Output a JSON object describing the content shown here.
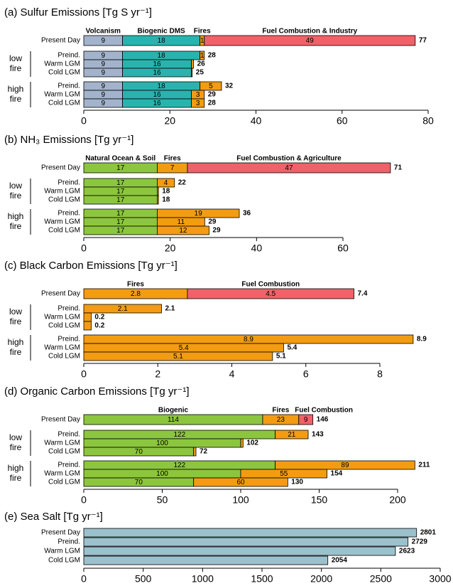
{
  "chart_data": [
    {
      "type": "bar",
      "title": "(a) Sulfur Emissions [Tg S yr⁻¹]",
      "categories": [
        "Present Day",
        "Preind.",
        "Warm LGM",
        "Cold LGM",
        "Preind.",
        "Warm LGM",
        "Cold LGM"
      ],
      "category_groups": [
        null,
        "low fire",
        "low fire",
        "low fire",
        "high fire",
        "high fire",
        "high fire"
      ],
      "series": [
        {
          "name": "Volcanism",
          "color": "#a3b3cb",
          "values": [
            9,
            9,
            9,
            9,
            9,
            9,
            9
          ]
        },
        {
          "name": "Biogenic DMS",
          "color": "#2ab3ae",
          "values": [
            18,
            18,
            16,
            16,
            18,
            16,
            16
          ]
        },
        {
          "name": "Fires",
          "color": "#f39c12",
          "values": [
            1,
            1,
            0.5,
            0.2,
            5,
            3,
            3
          ]
        },
        {
          "name": "Fuel Combustion & Industry",
          "color": "#ef6269",
          "values": [
            49,
            null,
            null,
            null,
            null,
            null,
            null
          ]
        }
      ],
      "totals": [
        77,
        28,
        26,
        25,
        32,
        29,
        28
      ],
      "xlim": [
        0,
        80
      ],
      "xticks": [
        0,
        20,
        40,
        60,
        80
      ]
    },
    {
      "type": "bar",
      "title": "(b) NH₃ Emissions [Tg yr⁻¹]",
      "categories": [
        "Present Day",
        "Preind.",
        "Warm LGM",
        "Cold LGM",
        "Preind.",
        "Warm LGM",
        "Cold LGM"
      ],
      "category_groups": [
        null,
        "low fire",
        "low fire",
        "low fire",
        "high fire",
        "high fire",
        "high fire"
      ],
      "series": [
        {
          "name": "Natural Ocean & Soil",
          "color": "#8cc63e",
          "values": [
            17,
            17,
            17,
            17,
            17,
            17,
            17
          ]
        },
        {
          "name": "Fires",
          "color": "#f39c12",
          "values": [
            7,
            4,
            0.3,
            0.3,
            19,
            11,
            12
          ]
        },
        {
          "name": "Fuel Combustion & Agriculture",
          "color": "#ef6269",
          "values": [
            47,
            null,
            null,
            null,
            null,
            null,
            null
          ]
        }
      ],
      "totals": [
        71,
        22,
        18,
        18,
        36,
        29,
        29
      ],
      "xlim": [
        0,
        60
      ],
      "xticks": [
        0,
        20,
        40,
        60
      ]
    },
    {
      "type": "bar",
      "title": "(c) Black Carbon Emissions [Tg yr⁻¹]",
      "categories": [
        "Present Day",
        "Preind.",
        "Warm LGM",
        "Cold LGM",
        "Preind.",
        "Warm LGM",
        "Cold LGM"
      ],
      "category_groups": [
        null,
        "low fire",
        "low fire",
        "low fire",
        "high fire",
        "high fire",
        "high fire"
      ],
      "series": [
        {
          "name": "Fires",
          "color": "#f39c12",
          "values": [
            2.8,
            2.1,
            0.2,
            0.2,
            8.9,
            5.4,
            5.1
          ]
        },
        {
          "name": "Fuel Combustion",
          "color": "#ef6269",
          "values": [
            4.5,
            null,
            null,
            null,
            null,
            null,
            null
          ]
        }
      ],
      "totals": [
        7.4,
        2.1,
        0.2,
        0.2,
        8.9,
        5.4,
        5.1
      ],
      "xlim": [
        0,
        8
      ],
      "xticks": [
        0,
        2,
        4,
        6,
        8
      ]
    },
    {
      "type": "bar",
      "title": "(d) Organic Carbon Emissions [Tg yr⁻¹]",
      "categories": [
        "Present Day",
        "Preind.",
        "Warm LGM",
        "Cold LGM",
        "Preind.",
        "Warm LGM",
        "Cold LGM"
      ],
      "category_groups": [
        null,
        "low fire",
        "low fire",
        "low fire",
        "high fire",
        "high fire",
        "high fire"
      ],
      "series": [
        {
          "name": "Biogenic",
          "color": "#8cc63e",
          "values": [
            114,
            122,
            100,
            70,
            122,
            100,
            70
          ]
        },
        {
          "name": "Fires",
          "color": "#f39c12",
          "values": [
            23,
            21,
            1.5,
            1.5,
            89,
            55,
            60
          ]
        },
        {
          "name": "Fuel Combustion",
          "color": "#ef6269",
          "values": [
            9,
            null,
            null,
            null,
            null,
            null,
            null
          ]
        }
      ],
      "totals": [
        146,
        143,
        102,
        72,
        211,
        154,
        130
      ],
      "xlim": [
        0,
        200
      ],
      "xticks": [
        0,
        50,
        100,
        150,
        200
      ]
    },
    {
      "type": "bar",
      "title": "(e) Sea Salt [Tg yr⁻¹]",
      "categories": [
        "Present Day",
        "Preind.",
        "Warm LGM",
        "Cold LGM"
      ],
      "series": [
        {
          "color": "#9bc1cd",
          "values": [
            2801,
            2729,
            2623,
            2054
          ]
        }
      ],
      "xlim": [
        0,
        3000
      ],
      "xticks": [
        0,
        500,
        1000,
        1500,
        2000,
        2500,
        3000
      ]
    }
  ]
}
